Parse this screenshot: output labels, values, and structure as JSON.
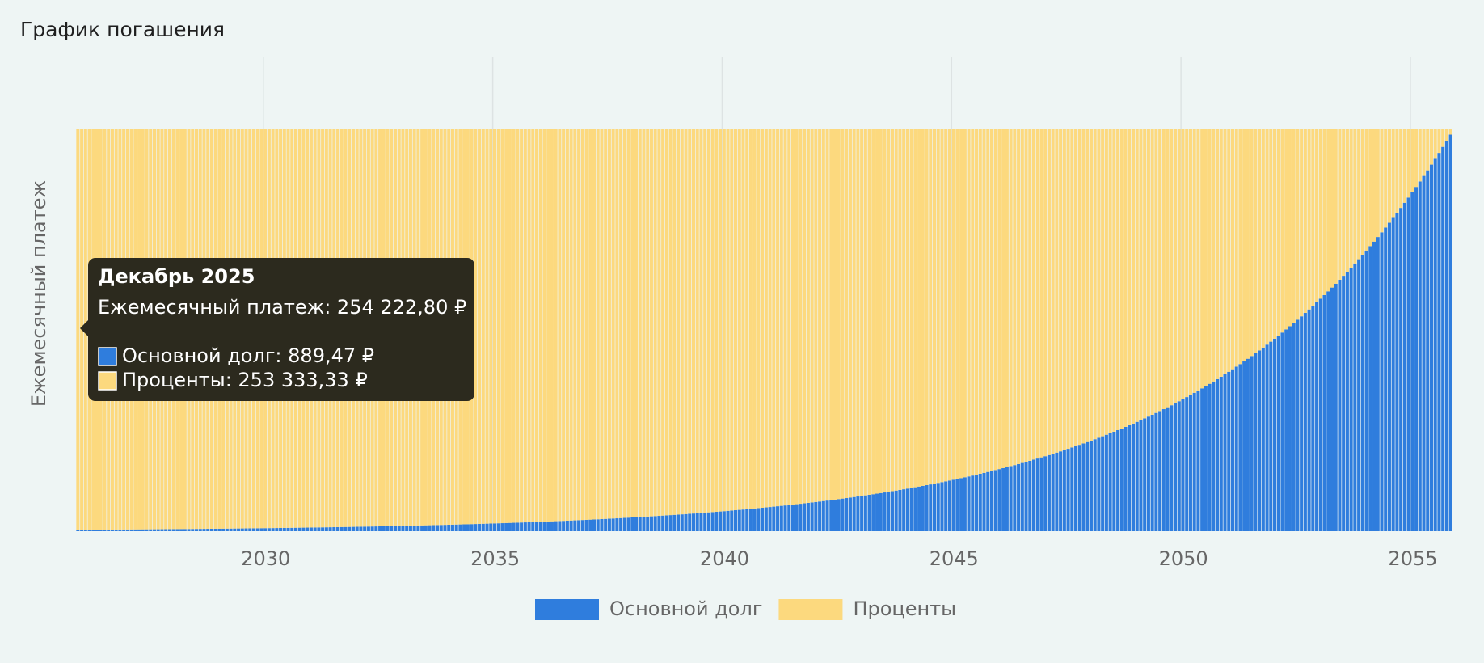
{
  "chart_data": {
    "type": "stacked-bar",
    "title": "График погашения",
    "y_label": "Ежемесячный платеж",
    "ylim": [
      0,
      254222.8
    ],
    "grid": true,
    "legend": "bottom",
    "x": [
      "2025-12",
      "2026-01",
      "2026-02",
      "2026-03",
      "2026-04",
      "2026-05",
      "2026-06",
      "2026-07",
      "2026-08",
      "2026-09",
      "2026-10",
      "2026-11",
      "2026-12",
      "2027-01",
      "2027-02",
      "2027-03",
      "2027-04",
      "2027-05",
      "2027-06",
      "2027-07",
      "2027-08",
      "2027-09",
      "2027-10",
      "2027-11",
      "2027-12",
      "2028-01",
      "2028-02",
      "2028-03",
      "2028-04",
      "2028-05",
      "2028-06",
      "2028-07",
      "2028-08",
      "2028-09",
      "2028-10",
      "2028-11",
      "2028-12",
      "2029-01",
      "2029-02",
      "2029-03",
      "2029-04",
      "2029-05",
      "2029-06",
      "2029-07",
      "2029-08",
      "2029-09",
      "2029-10",
      "2029-11",
      "2029-12",
      "2030-01",
      "2030-02",
      "2030-03",
      "2030-04",
      "2030-05",
      "2030-06",
      "2030-07",
      "2030-08",
      "2030-09",
      "2030-10",
      "2030-11",
      "2030-12",
      "2031-01",
      "2031-02",
      "2031-03",
      "2031-04",
      "2031-05",
      "2031-06",
      "2031-07",
      "2031-08",
      "2031-09",
      "2031-10",
      "2031-11",
      "2031-12",
      "2032-01",
      "2032-02",
      "2032-03",
      "2032-04",
      "2032-05",
      "2032-06",
      "2032-07",
      "2032-08",
      "2032-09",
      "2032-10",
      "2032-11",
      "2032-12",
      "2033-01",
      "2033-02",
      "2033-03",
      "2033-04",
      "2033-05",
      "2033-06",
      "2033-07",
      "2033-08",
      "2033-09",
      "2033-10",
      "2033-11",
      "2033-12",
      "2034-01",
      "2034-02",
      "2034-03",
      "2034-04",
      "2034-05",
      "2034-06",
      "2034-07",
      "2034-08",
      "2034-09",
      "2034-10",
      "2034-11",
      "2034-12",
      "2035-01",
      "2035-02",
      "2035-03",
      "2035-04",
      "2035-05",
      "2035-06",
      "2035-07",
      "2035-08",
      "2035-09",
      "2035-10",
      "2035-11",
      "2035-12",
      "2036-01",
      "2036-02",
      "2036-03",
      "2036-04",
      "2036-05",
      "2036-06",
      "2036-07",
      "2036-08",
      "2036-09",
      "2036-10",
      "2036-11",
      "2036-12",
      "2037-01",
      "2037-02",
      "2037-03",
      "2037-04",
      "2037-05",
      "2037-06",
      "2037-07",
      "2037-08",
      "2037-09",
      "2037-10",
      "2037-11",
      "2037-12",
      "2038-01",
      "2038-02",
      "2038-03",
      "2038-04",
      "2038-05",
      "2038-06",
      "2038-07",
      "2038-08",
      "2038-09",
      "2038-10",
      "2038-11",
      "2038-12",
      "2039-01",
      "2039-02",
      "2039-03",
      "2039-04",
      "2039-05",
      "2039-06",
      "2039-07",
      "2039-08",
      "2039-09",
      "2039-10",
      "2039-11",
      "2039-12",
      "2040-01",
      "2040-02",
      "2040-03",
      "2040-04",
      "2040-05",
      "2040-06",
      "2040-07",
      "2040-08",
      "2040-09",
      "2040-10",
      "2040-11",
      "2040-12",
      "2041-01",
      "2041-02",
      "2041-03",
      "2041-04",
      "2041-05",
      "2041-06",
      "2041-07",
      "2041-08",
      "2041-09",
      "2041-10",
      "2041-11",
      "2041-12",
      "2042-01",
      "2042-02",
      "2042-03",
      "2042-04",
      "2042-05",
      "2042-06",
      "2042-07",
      "2042-08",
      "2042-09",
      "2042-10",
      "2042-11",
      "2042-12",
      "2043-01",
      "2043-02",
      "2043-03",
      "2043-04",
      "2043-05",
      "2043-06",
      "2043-07",
      "2043-08",
      "2043-09",
      "2043-10",
      "2043-11",
      "2043-12",
      "2044-01",
      "2044-02",
      "2044-03",
      "2044-04",
      "2044-05",
      "2044-06",
      "2044-07",
      "2044-08",
      "2044-09",
      "2044-10",
      "2044-11",
      "2044-12",
      "2045-01",
      "2045-02",
      "2045-03",
      "2045-04",
      "2045-05",
      "2045-06",
      "2045-07",
      "2045-08",
      "2045-09",
      "2045-10",
      "2045-11",
      "2045-12",
      "2046-01",
      "2046-02",
      "2046-03",
      "2046-04",
      "2046-05",
      "2046-06",
      "2046-07",
      "2046-08",
      "2046-09",
      "2046-10",
      "2046-11",
      "2046-12",
      "2047-01",
      "2047-02",
      "2047-03",
      "2047-04",
      "2047-05",
      "2047-06",
      "2047-07",
      "2047-08",
      "2047-09",
      "2047-10",
      "2047-11",
      "2047-12",
      "2048-01",
      "2048-02",
      "2048-03",
      "2048-04",
      "2048-05",
      "2048-06",
      "2048-07",
      "2048-08",
      "2048-09",
      "2048-10",
      "2048-11",
      "2048-12",
      "2049-01",
      "2049-02",
      "2049-03",
      "2049-04",
      "2049-05",
      "2049-06",
      "2049-07",
      "2049-08",
      "2049-09",
      "2049-10",
      "2049-11",
      "2049-12",
      "2050-01",
      "2050-02",
      "2050-03",
      "2050-04",
      "2050-05",
      "2050-06",
      "2050-07",
      "2050-08",
      "2050-09",
      "2050-10",
      "2050-11",
      "2050-12",
      "2051-01",
      "2051-02",
      "2051-03",
      "2051-04",
      "2051-05",
      "2051-06",
      "2051-07",
      "2051-08",
      "2051-09",
      "2051-10",
      "2051-11",
      "2051-12",
      "2052-01",
      "2052-02",
      "2052-03",
      "2052-04",
      "2052-05",
      "2052-06",
      "2052-07",
      "2052-08",
      "2052-09",
      "2052-10",
      "2052-11",
      "2052-12",
      "2053-01",
      "2053-02",
      "2053-03",
      "2053-04",
      "2053-05",
      "2053-06",
      "2053-07",
      "2053-08",
      "2053-09",
      "2053-10",
      "2053-11",
      "2053-12",
      "2054-01",
      "2054-02",
      "2054-03",
      "2054-04",
      "2054-05",
      "2054-06",
      "2054-07",
      "2054-08",
      "2054-09",
      "2054-10",
      "2054-11",
      "2054-12",
      "2055-01",
      "2055-02",
      "2055-03",
      "2055-04",
      "2055-05",
      "2055-06",
      "2055-07",
      "2055-08",
      "2055-09",
      "2055-10",
      "2055-11"
    ],
    "xticks": [
      {
        "value": "2030-01",
        "label": "2030"
      },
      {
        "value": "2035-01",
        "label": "2035"
      },
      {
        "value": "2040-01",
        "label": "2040"
      },
      {
        "value": "2045-01",
        "label": "2045"
      },
      {
        "value": "2050-01",
        "label": "2050"
      },
      {
        "value": "2055-01",
        "label": "2055"
      }
    ],
    "series": [
      {
        "name": "Основной долг",
        "color": "#2f7ddd",
        "values": [
          889.47,
          904,
          918,
          932,
          947,
          962,
          977,
          993,
          1009,
          1025,
          1041,
          1057,
          1074,
          1091,
          1108,
          1126,
          1144,
          1162,
          1180,
          1199,
          1218,
          1237,
          1257,
          1277,
          1297,
          1318,
          1338,
          1360,
          1381,
          1403,
          1425,
          1448,
          1471,
          1494,
          1518,
          1542,
          1566,
          1591,
          1616,
          1642,
          1668,
          1694,
          1721,
          1748,
          1776,
          1804,
          1832,
          1861,
          1891,
          1921,
          1951,
          1982,
          2014,
          2046,
          2078,
          2111,
          2144,
          2178,
          2213,
          2248,
          2283,
          2319,
          2356,
          2393,
          2431,
          2470,
          2509,
          2548,
          2589,
          2630,
          2671,
          2714,
          2757,
          2801,
          2845,
          2890,
          2936,
          2982,
          3029,
          3077,
          3126,
          3176,
          3226,
          3277,
          3329,
          3382,
          3435,
          3490,
          3545,
          3601,
          3658,
          3716,
          3775,
          3835,
          3895,
          3957,
          4019,
          4083,
          4147,
          4213,
          4280,
          4347,
          4416,
          4486,
          4557,
          4629,
          4703,
          4777,
          4853,
          4930,
          5008,
          5087,
          5168,
          5250,
          5333,
          5417,
          5503,
          5590,
          5679,
          5768,
          5860,
          5953,
          6047,
          6143,
          6240,
          6339,
          6439,
          6541,
          6645,
          6750,
          6857,
          6965,
          7076,
          7188,
          7302,
          7418,
          7535,
          7654,
          7775,
          7898,
          8024,
          8151,
          8280,
          8411,
          8544,
          8679,
          8817,
          8956,
          9098,
          9242,
          9388,
          9537,
          9688,
          9841,
          9997,
          10156,
          10316,
          10479,
          10645,
          10814,
          10985,
          11159,
          11336,
          11515,
          11698,
          11883,
          12071,
          12262,
          12457,
          12654,
          12854,
          13058,
          13265,
          13475,
          13688,
          13905,
          14125,
          14349,
          14576,
          14807,
          15041,
          15279,
          15521,
          15767,
          16016,
          16270,
          16528,
          16789,
          17055,
          17325,
          17600,
          17878,
          18162,
          18450,
          18742,
          19039,
          19340,
          19646,
          19957,
          20273,
          20594,
          20920,
          21252,
          21588,
          21930,
          22277,
          22630,
          22988,
          23352,
          23722,
          24098,
          24479,
          24867,
          25260,
          25660,
          26067,
          26480,
          26899,
          27325,
          27758,
          28197,
          28644,
          29097,
          29558,
          30026,
          30502,
          30985,
          31475,
          31974,
          32480,
          32994,
          33517,
          34048,
          34587,
          35134,
          35691,
          36256,
          36830,
          37413,
          38005,
          38608,
          39219,
          39840,
          40471,
          41112,
          41763,
          42424,
          43096,
          43778,
          44471,
          45175,
          45891,
          46618,
          47356,
          48106,
          48868,
          49642,
          50428,
          51226,
          52037,
          52861,
          53698,
          54548,
          55412,
          56290,
          57181,
          58087,
          59006,
          59941,
          60890,
          61854,
          62834,
          63829,
          64839,
          65866,
          66908,
          67968,
          69044,
          70138,
          71248,
          72376,
          73522,
          74686,
          75869,
          77070,
          78290,
          79530,
          80789,
          82069,
          83368,
          84689,
          86030,
          87392,
          88776,
          90181,
          91609,
          93060,
          94533,
          96030,
          97550,
          99096,
          100665,
          102259,
          103878,
          105523,
          107194,
          108891,
          110615,
          112367,
          114146,
          115953,
          117789,
          119655,
          121549,
          123474,
          125430,
          127416,
          129433,
          131482,
          133564,
          135679,
          137827,
          140010,
          142226,
          144480,
          146767,
          149092,
          151453,
          153851,
          156287,
          158760,
          161274,
          163829,
          166422,
          169058,
          171733,
          174455,
          177217,
          180024,
          182874,
          185770,
          188712,
          191698,
          194734,
          197818,
          200950,
          204132,
          207363,
          210649,
          213984,
          217373,
          220815,
          224312,
          227863,
          231470,
          235135,
          238859,
          242640,
          246483,
          250384
        ]
      },
      {
        "name": "Проценты",
        "color": "#fcd97e",
        "values": [
          253333.33,
          253319,
          253305,
          253291,
          253276,
          253261,
          253246,
          253230,
          253214,
          253198,
          253182,
          253166,
          253149,
          253132,
          253115,
          253097,
          253079,
          253061,
          253043,
          253024,
          253005,
          252986,
          252966,
          252946,
          252926,
          252905,
          252885,
          252863,
          252842,
          252820,
          252798,
          252775,
          252752,
          252729,
          252705,
          252681,
          252657,
          252632,
          252607,
          252581,
          252555,
          252529,
          252502,
          252475,
          252447,
          252419,
          252391,
          252362,
          252332,
          252302,
          252272,
          252241,
          252209,
          252177,
          252145,
          252112,
          252079,
          252045,
          252010,
          251975,
          251940,
          251904,
          251867,
          251830,
          251792,
          251753,
          251714,
          251675,
          251634,
          251593,
          251552,
          251509,
          251466,
          251422,
          251378,
          251333,
          251287,
          251241,
          251194,
          251146,
          251097,
          251047,
          250997,
          250946,
          250894,
          250841,
          250788,
          250733,
          250678,
          250622,
          250565,
          250507,
          250448,
          250388,
          250328,
          250266,
          250204,
          250140,
          250076,
          250010,
          249943,
          249876,
          249807,
          249737,
          249666,
          249594,
          249520,
          249446,
          249370,
          249293,
          249215,
          249136,
          249055,
          248973,
          248890,
          248806,
          248720,
          248633,
          248544,
          248455,
          248363,
          248270,
          248176,
          248080,
          247983,
          247884,
          247784,
          247682,
          247578,
          247473,
          247366,
          247258,
          247147,
          247035,
          246921,
          246805,
          246688,
          246569,
          246448,
          246325,
          246199,
          246072,
          245943,
          245812,
          245679,
          245544,
          245406,
          245267,
          245125,
          244981,
          244835,
          244686,
          244535,
          244382,
          244226,
          244067,
          243907,
          243744,
          243578,
          243409,
          243238,
          243064,
          242887,
          242708,
          242525,
          242340,
          242152,
          241961,
          241766,
          241569,
          241369,
          241165,
          240958,
          240748,
          240535,
          240318,
          240098,
          239874,
          239647,
          239416,
          239182,
          238944,
          238702,
          238456,
          238207,
          237953,
          237695,
          237434,
          237168,
          236898,
          236623,
          236345,
          236061,
          235773,
          235481,
          235184,
          234883,
          234577,
          234266,
          233950,
          233629,
          233303,
          232971,
          232635,
          232293,
          231946,
          231593,
          231235,
          230871,
          230501,
          230125,
          229744,
          229356,
          228963,
          228563,
          228156,
          227743,
          227324,
          226898,
          226465,
          226026,
          225579,
          225126,
          224665,
          224197,
          223721,
          223238,
          222748,
          222249,
          221743,
          221229,
          220706,
          220175,
          219636,
          219089,
          218532,
          217967,
          217393,
          216810,
          216218,
          215615,
          215004,
          214383,
          213752,
          213111,
          212460,
          211799,
          211127,
          210445,
          209752,
          209048,
          208332,
          207605,
          206867,
          206117,
          205355,
          204581,
          203795,
          202997,
          202186,
          201362,
          200525,
          199675,
          198811,
          197933,
          197042,
          196136,
          195217,
          194282,
          193333,
          192369,
          191389,
          190394,
          189384,
          188357,
          187315,
          186255,
          185179,
          184085,
          182975,
          181847,
          180701,
          179537,
          178354,
          177153,
          175933,
          174693,
          173434,
          172154,
          170855,
          169534,
          168193,
          166831,
          165447,
          164042,
          162614,
          161163,
          159690,
          158193,
          156673,
          155127,
          153558,
          151964,
          150345,
          148700,
          147029,
          145332,
          143608,
          141856,
          140077,
          138270,
          136434,
          134568,
          132674,
          130749,
          128793,
          126807,
          124790,
          122741,
          120659,
          118544,
          116396,
          114213,
          111997,
          109743,
          107456,
          105131,
          102770,
          100372,
          97936,
          95463,
          92949,
          90394,
          87801,
          85165,
          82490,
          79768,
          77006,
          74199,
          71349,
          68453,
          65511,
          62525,
          59489,
          56405,
          53273,
          50091,
          46860,
          43574,
          40239,
          36850,
          33408,
          29911,
          26360,
          22753,
          19088,
          15364,
          11583,
          7740,
          3839
        ]
      }
    ],
    "tooltip": {
      "title": "Декабрь 2025",
      "total": "Ежемесячный платеж: 254 222,80 ₽",
      "items": [
        "Основной долг: 889,47 ₽",
        "Проценты: 253 333,33 ₽"
      ]
    }
  }
}
